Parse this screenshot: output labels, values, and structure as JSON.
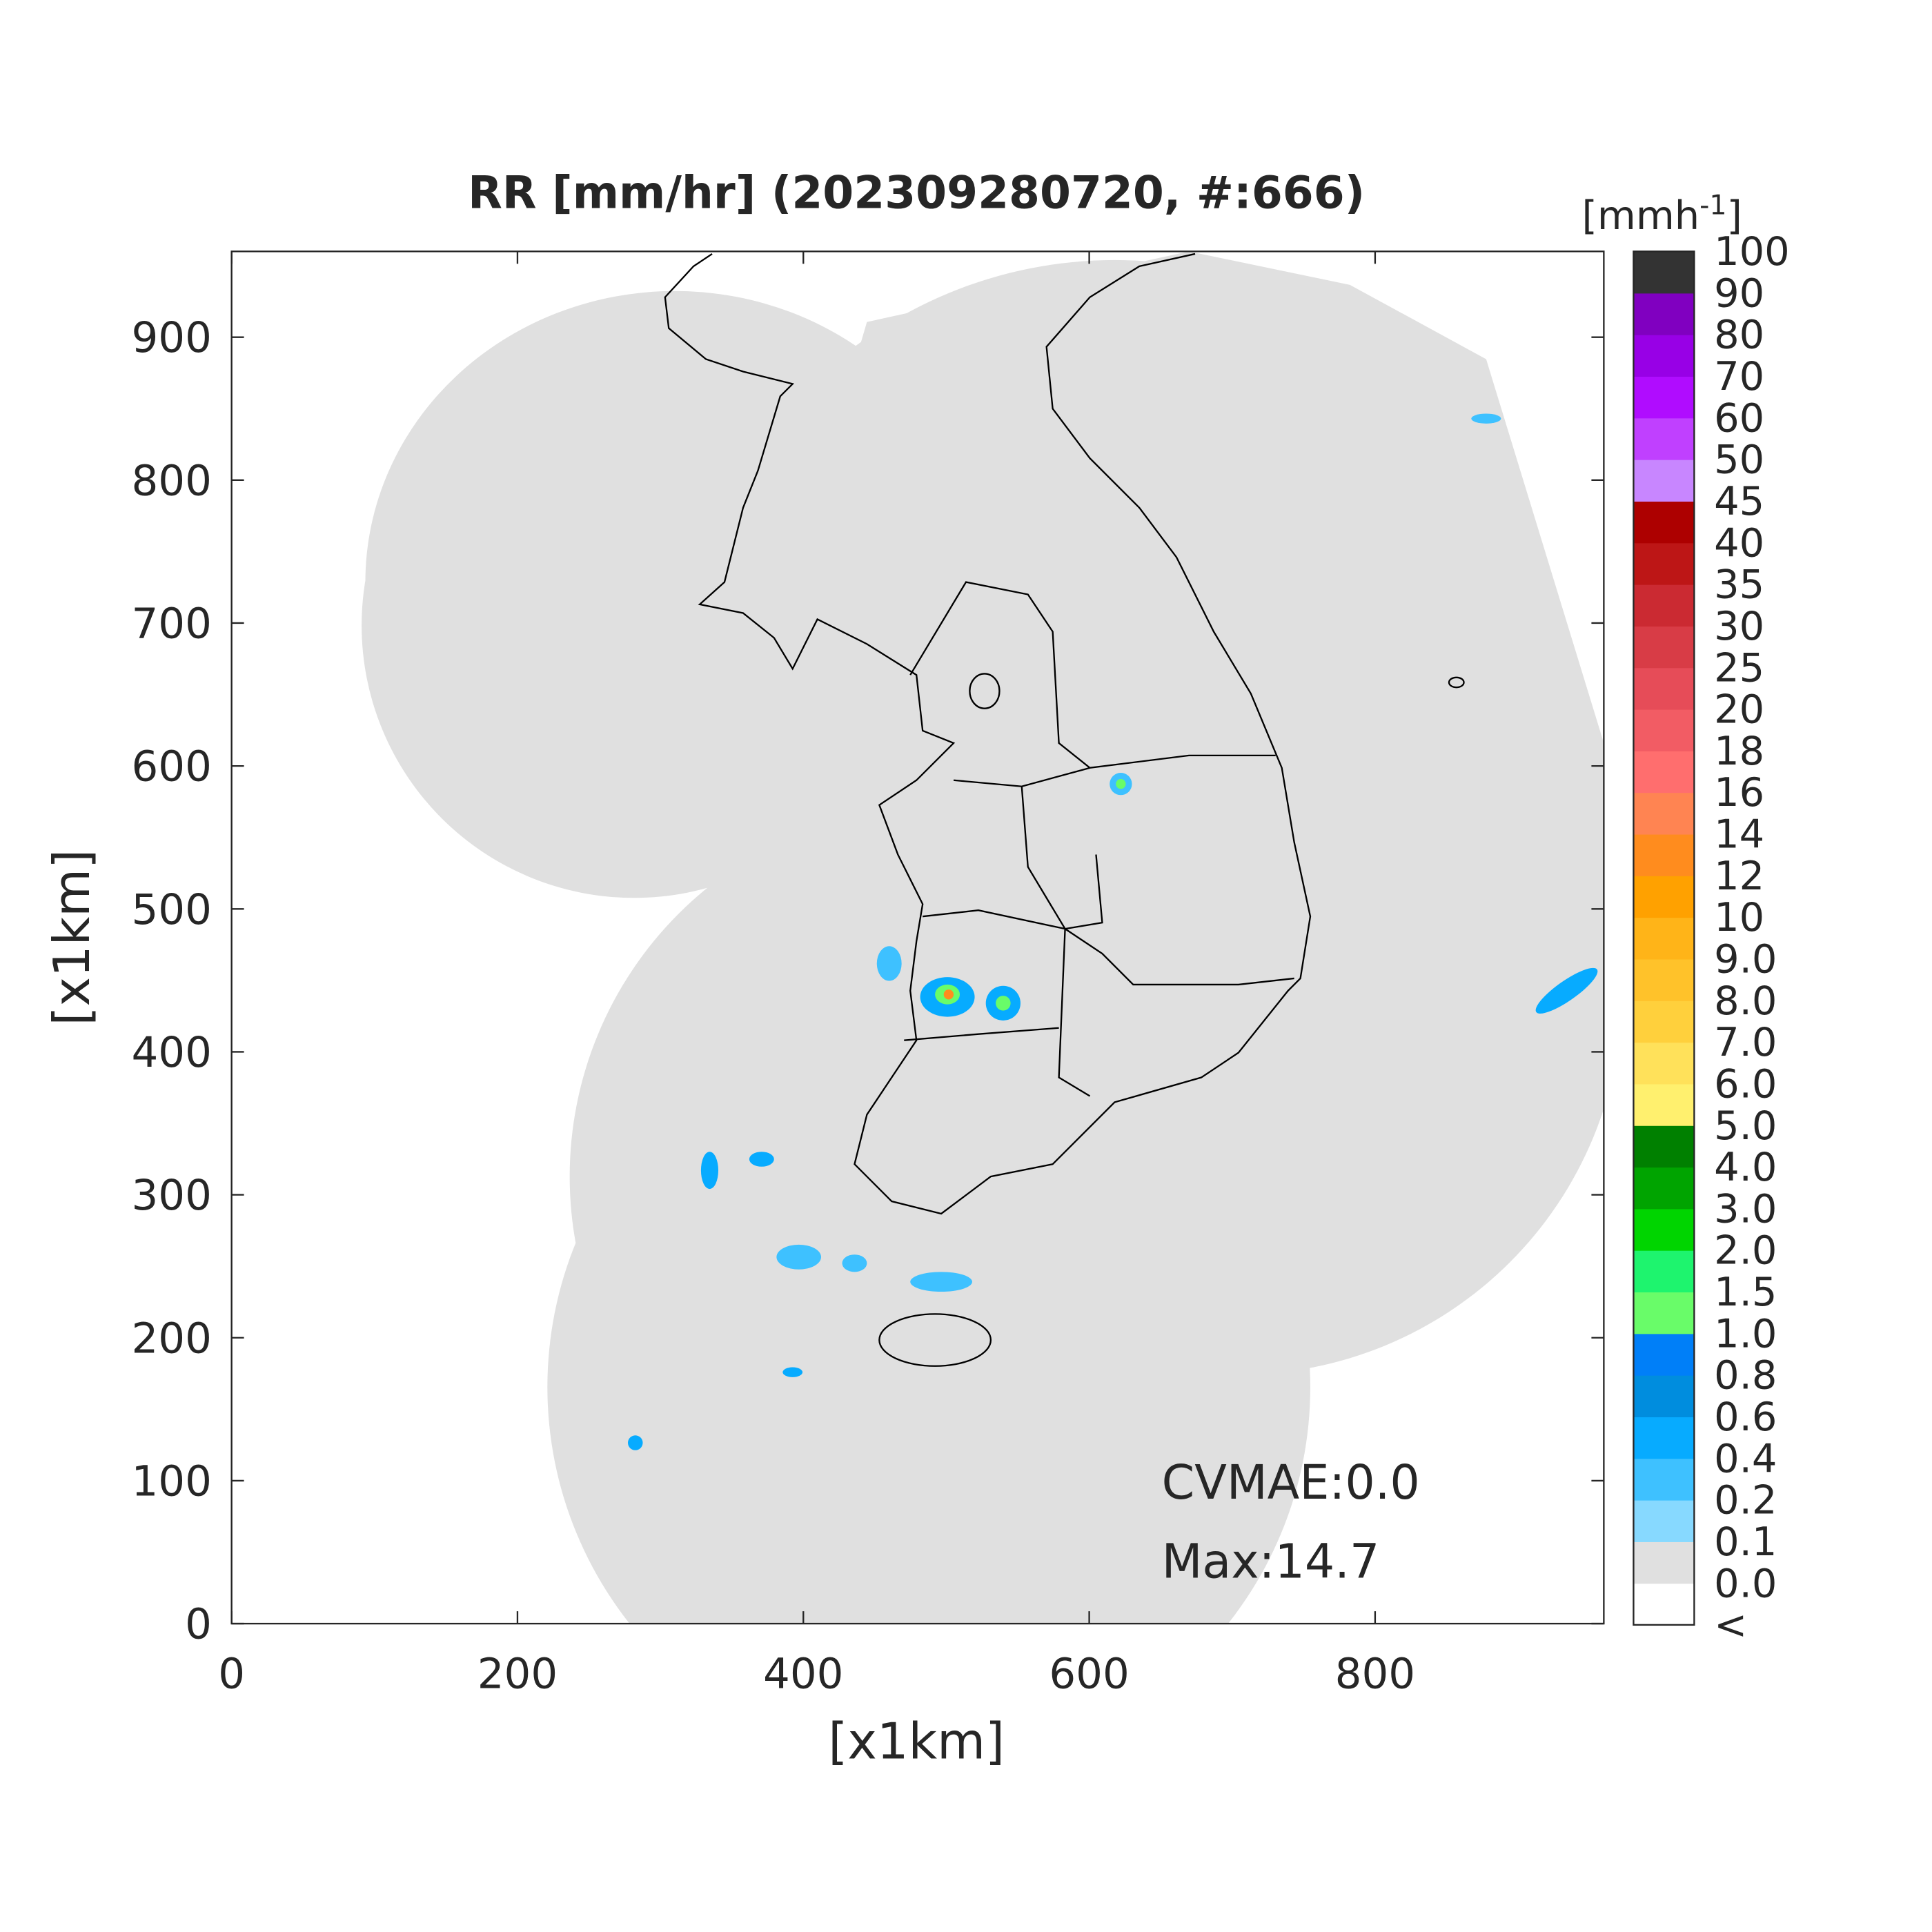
{
  "chart_data": {
    "type": "map",
    "title": "RR [mm/hr] (202309280720, #:666)",
    "xlabel": "[x1km]",
    "ylabel": "[x1km]",
    "xlim": [
      0,
      960
    ],
    "ylim": [
      0,
      960
    ],
    "xticks": [
      0,
      200,
      400,
      600,
      800
    ],
    "yticks": [
      0,
      100,
      200,
      300,
      400,
      500,
      600,
      700,
      800,
      900
    ],
    "annotations": [
      "CVMAE:0.0",
      "Max:14.7"
    ],
    "colorbar": {
      "label": {
        "base": "[mmh",
        "sup": "-1",
        "end": "]"
      },
      "ticks": [
        "<",
        "0.0",
        "0.1",
        "0.2",
        "0.4",
        "0.6",
        "0.8",
        "1.0",
        "1.5",
        "2.0",
        "3.0",
        "4.0",
        "5.0",
        "6.0",
        "7.0",
        "8.0",
        "9.0",
        "10",
        "12",
        "14",
        "16",
        "18",
        "20",
        "25",
        "30",
        "35",
        "40",
        "45",
        "50",
        "60",
        "70",
        "80",
        "90",
        "100"
      ],
      "colors": [
        "#ffffff",
        "#e0e0e0",
        "#87d9ff",
        "#3ec1ff",
        "#07abff",
        "#008dde",
        "#007ff8",
        "#69fc69",
        "#1ef46e",
        "#00d500",
        "#00a400",
        "#008000",
        "#fff06e",
        "#ffe15a",
        "#ffd03c",
        "#ffc22a",
        "#ffb418",
        "#ffa100",
        "#ff8c1e",
        "#ff8452",
        "#ff6e6e",
        "#f25c64",
        "#e64c58",
        "#d83c46",
        "#cb2a32",
        "#bd1616",
        "#ad0000",
        "#c886ff",
        "#c040ff",
        "#b00cff",
        "#9800e6",
        "#8000c0",
        "#333333"
      ]
    }
  }
}
